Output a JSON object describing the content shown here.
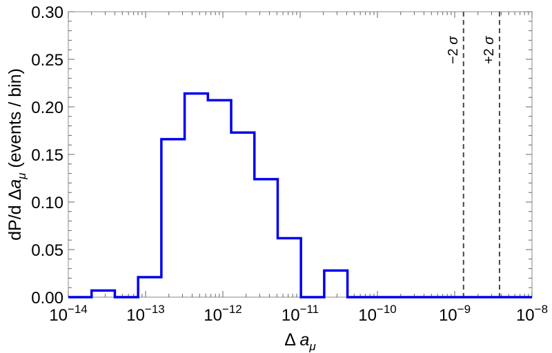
{
  "chart_data": {
    "type": "step",
    "xscale": "log",
    "xlim": [
      1e-14,
      1e-08
    ],
    "ylim": [
      0,
      0.3
    ],
    "xlabel": "Δ a_μ",
    "ylabel": "dP/d Δa_μ (events / bin)",
    "x_ticks": [
      {
        "value": 1e-14,
        "label_base": "10",
        "label_exp": "−14"
      },
      {
        "value": 1e-13,
        "label_base": "10",
        "label_exp": "−13"
      },
      {
        "value": 1e-12,
        "label_base": "10",
        "label_exp": "−12"
      },
      {
        "value": 1e-11,
        "label_base": "10",
        "label_exp": "−11"
      },
      {
        "value": 1e-10,
        "label_base": "10",
        "label_exp": "−10"
      },
      {
        "value": 1e-09,
        "label_base": "10",
        "label_exp": "−9"
      },
      {
        "value": 1e-08,
        "label_base": "10",
        "label_exp": "−8"
      }
    ],
    "y_ticks": [
      {
        "value": 0.0,
        "label": "0.00"
      },
      {
        "value": 0.05,
        "label": "0.05"
      },
      {
        "value": 0.1,
        "label": "0.10"
      },
      {
        "value": 0.15,
        "label": "0.15"
      },
      {
        "value": 0.2,
        "label": "0.20"
      },
      {
        "value": 0.25,
        "label": "0.25"
      },
      {
        "value": 0.3,
        "label": "0.30"
      }
    ],
    "bins": [
      {
        "x_lo": 1e-14,
        "x_hi": 2e-14,
        "value": 0.0
      },
      {
        "x_lo": 2e-14,
        "x_hi": 4e-14,
        "value": 0.007
      },
      {
        "x_lo": 4e-14,
        "x_hi": 8e-14,
        "value": 0.0
      },
      {
        "x_lo": 8e-14,
        "x_hi": 1.6e-13,
        "value": 0.021
      },
      {
        "x_lo": 1.6e-13,
        "x_hi": 3.2e-13,
        "value": 0.166
      },
      {
        "x_lo": 3.2e-13,
        "x_hi": 6.4e-13,
        "value": 0.214
      },
      {
        "x_lo": 6.4e-13,
        "x_hi": 1.28e-12,
        "value": 0.207
      },
      {
        "x_lo": 1.28e-12,
        "x_hi": 2.56e-12,
        "value": 0.173
      },
      {
        "x_lo": 2.56e-12,
        "x_hi": 5.12e-12,
        "value": 0.124
      },
      {
        "x_lo": 5.12e-12,
        "x_hi": 1.024e-11,
        "value": 0.062
      },
      {
        "x_lo": 1.024e-11,
        "x_hi": 2.048e-11,
        "value": 0.0
      },
      {
        "x_lo": 2.048e-11,
        "x_hi": 4.096e-11,
        "value": 0.028
      },
      {
        "x_lo": 4.096e-11,
        "x_hi": 1e-08,
        "value": 0.0
      }
    ],
    "vlines": [
      {
        "x": 1.3e-09,
        "label": "−2 σ",
        "style": "dashed"
      },
      {
        "x": 3.8e-09,
        "label": "+2 σ",
        "style": "dashed"
      }
    ],
    "series_color": "#0000ee",
    "vline_color": "#444444",
    "grid": false
  }
}
